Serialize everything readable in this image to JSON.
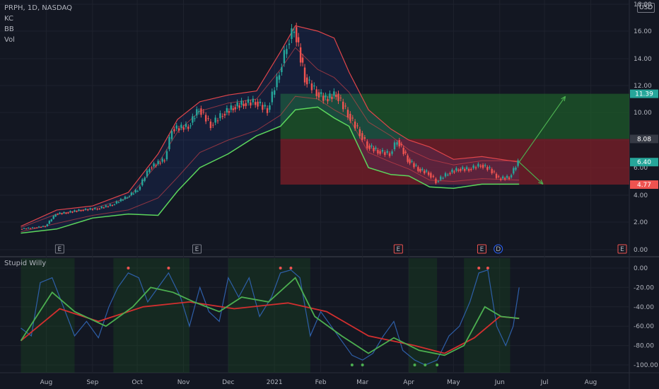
{
  "header": {
    "symbol_line": "PRPH, 1D, NASDAQ",
    "indicators": [
      "KC",
      "BB",
      "Vol"
    ],
    "currency": "USD",
    "oscillator_title": "Stupid Willy"
  },
  "colors": {
    "background": "#131722",
    "up": "#26a69a",
    "down": "#ef5350",
    "bb_band": "#5cd65c",
    "kc_band": "#e0454a",
    "osc_line": "#2e5fa8",
    "osc_fast": "#4caf50",
    "osc_slow": "#d32f2f",
    "target_zone": "#1e5a2a",
    "stop_zone": "#7d1f28"
  },
  "chart_data": [
    {
      "type": "line",
      "title": "PRPH, 1D, NASDAQ",
      "x_ticks": [
        "Aug",
        "Sep",
        "Oct",
        "Nov",
        "Dec",
        "2021",
        "Feb",
        "Mar",
        "Apr",
        "May",
        "Jun",
        "Jul",
        "Aug"
      ],
      "y_ticks": [
        0,
        2,
        4,
        6,
        8,
        10,
        12,
        14,
        16,
        18
      ],
      "ylim": [
        0,
        18
      ],
      "y_scale": "log-like",
      "grid": true,
      "price_labels": [
        {
          "label": "11.39",
          "value": 11.39,
          "color": "#26a69a"
        },
        {
          "label": "8.08",
          "value": 8.08,
          "color": "#2a2e39"
        },
        {
          "label": "6.40",
          "value": 6.4,
          "color": "#26a69a"
        },
        {
          "label": "4.77",
          "value": 4.77,
          "color": "#ef5350"
        }
      ],
      "earnings_markers": [
        "E",
        "E",
        "E",
        "E",
        "D",
        "E"
      ],
      "series": [
        {
          "name": "",
          "role": "price",
          "points": [
            [
              "2020-07-15",
              1.5
            ],
            [
              "2020-07-25",
              1.6
            ],
            [
              "2020-08-01",
              1.7
            ],
            [
              "2020-08-08",
              2.6
            ],
            [
              "2020-08-15",
              2.7
            ],
            [
              "2020-08-25",
              2.9
            ],
            [
              "2020-09-05",
              3.0
            ],
            [
              "2020-09-15",
              3.3
            ],
            [
              "2020-09-25",
              3.9
            ],
            [
              "2020-10-02",
              4.4
            ],
            [
              "2020-10-10",
              6.0
            ],
            [
              "2020-10-20",
              6.6
            ],
            [
              "2020-10-25",
              8.8
            ],
            [
              "2020-11-05",
              9.0
            ],
            [
              "2020-11-12",
              10.3
            ],
            [
              "2020-11-20",
              9.1
            ],
            [
              "2020-11-28",
              9.9
            ],
            [
              "2020-12-05",
              10.4
            ],
            [
              "2020-12-12",
              10.7
            ],
            [
              "2020-12-20",
              10.8
            ],
            [
              "2020-12-28",
              10.2
            ],
            [
              "2021-01-05",
              13.0
            ],
            [
              "2021-01-10",
              15.0
            ],
            [
              "2021-01-15",
              16.3
            ],
            [
              "2021-01-22",
              12.6
            ],
            [
              "2021-01-30",
              11.5
            ],
            [
              "2021-02-05",
              11.0
            ],
            [
              "2021-02-12",
              11.4
            ],
            [
              "2021-02-20",
              9.9
            ],
            [
              "2021-02-28",
              8.5
            ],
            [
              "2021-03-05",
              7.6
            ],
            [
              "2021-03-12",
              7.2
            ],
            [
              "2021-03-20",
              7.0
            ],
            [
              "2021-03-25",
              8.0
            ],
            [
              "2021-04-01",
              6.6
            ],
            [
              "2021-04-08",
              5.9
            ],
            [
              "2021-04-15",
              5.6
            ],
            [
              "2021-04-20",
              5.0
            ],
            [
              "2021-04-28",
              5.6
            ],
            [
              "2021-05-05",
              5.9
            ],
            [
              "2021-05-12",
              5.9
            ],
            [
              "2021-05-20",
              6.2
            ],
            [
              "2021-05-26",
              5.9
            ],
            [
              "2021-06-01",
              5.2
            ],
            [
              "2021-06-08",
              5.3
            ],
            [
              "2021-06-14",
              6.4
            ]
          ]
        },
        {
          "name": "",
          "role": "bb_upper",
          "points": [
            [
              "2020-07-15",
              1.7
            ],
            [
              "2020-08-08",
              2.9
            ],
            [
              "2020-09-01",
              3.2
            ],
            [
              "2020-09-25",
              4.2
            ],
            [
              "2020-10-15",
              7.0
            ],
            [
              "2020-10-28",
              9.5
            ],
            [
              "2020-11-12",
              10.8
            ],
            [
              "2020-12-01",
              11.3
            ],
            [
              "2020-12-20",
              11.6
            ],
            [
              "2021-01-05",
              14.5
            ],
            [
              "2021-01-15",
              16.4
            ],
            [
              "2021-01-30",
              16.0
            ],
            [
              "2021-02-10",
              15.5
            ],
            [
              "2021-02-20",
              13.0
            ],
            [
              "2021-03-05",
              10.2
            ],
            [
              "2021-03-20",
              8.8
            ],
            [
              "2021-04-01",
              8.0
            ],
            [
              "2021-04-15",
              7.5
            ],
            [
              "2021-05-01",
              6.6
            ],
            [
              "2021-05-20",
              6.8
            ],
            [
              "2021-06-14",
              6.4
            ]
          ]
        },
        {
          "name": "",
          "role": "bb_lower",
          "points": [
            [
              "2020-07-15",
              1.2
            ],
            [
              "2020-08-08",
              1.5
            ],
            [
              "2020-09-01",
              2.3
            ],
            [
              "2020-09-25",
              2.6
            ],
            [
              "2020-10-15",
              2.5
            ],
            [
              "2020-10-28",
              4.3
            ],
            [
              "2020-11-12",
              6.0
            ],
            [
              "2020-12-01",
              7.0
            ],
            [
              "2020-12-20",
              8.3
            ],
            [
              "2021-01-05",
              9.0
            ],
            [
              "2021-01-15",
              10.2
            ],
            [
              "2021-01-30",
              10.4
            ],
            [
              "2021-02-10",
              9.6
            ],
            [
              "2021-02-20",
              9.0
            ],
            [
              "2021-03-05",
              6.0
            ],
            [
              "2021-03-20",
              5.5
            ],
            [
              "2021-04-01",
              5.4
            ],
            [
              "2021-04-15",
              4.6
            ],
            [
              "2021-05-01",
              4.5
            ],
            [
              "2021-05-20",
              4.8
            ],
            [
              "2021-06-14",
              4.8
            ]
          ]
        },
        {
          "name": "",
          "role": "kc_upper",
          "points": [
            [
              "2020-07-15",
              1.6
            ],
            [
              "2020-08-08",
              2.6
            ],
            [
              "2020-09-01",
              3.0
            ],
            [
              "2020-09-25",
              3.8
            ],
            [
              "2020-10-15",
              6.3
            ],
            [
              "2020-10-28",
              8.6
            ],
            [
              "2020-11-12",
              10.1
            ],
            [
              "2020-12-01",
              10.7
            ],
            [
              "2020-12-20",
              11.0
            ],
            [
              "2021-01-05",
              13.2
            ],
            [
              "2021-01-15",
              14.8
            ],
            [
              "2021-01-30",
              13.2
            ],
            [
              "2021-02-10",
              12.6
            ],
            [
              "2021-02-20",
              11.5
            ],
            [
              "2021-03-05",
              9.3
            ],
            [
              "2021-03-20",
              8.3
            ],
            [
              "2021-04-01",
              7.3
            ],
            [
              "2021-04-15",
              6.6
            ],
            [
              "2021-05-01",
              6.2
            ],
            [
              "2021-05-20",
              6.5
            ],
            [
              "2021-06-14",
              6.5
            ]
          ]
        },
        {
          "name": "",
          "role": "kc_lower",
          "points": [
            [
              "2020-07-15",
              1.3
            ],
            [
              "2020-08-08",
              1.9
            ],
            [
              "2020-09-01",
              2.5
            ],
            [
              "2020-09-25",
              2.9
            ],
            [
              "2020-10-15",
              3.8
            ],
            [
              "2020-10-28",
              5.3
            ],
            [
              "2020-11-12",
              7.1
            ],
            [
              "2020-12-01",
              8.0
            ],
            [
              "2020-12-20",
              8.7
            ],
            [
              "2021-01-05",
              9.8
            ],
            [
              "2021-01-15",
              11.2
            ],
            [
              "2021-01-30",
              11.0
            ],
            [
              "2021-02-10",
              10.2
            ],
            [
              "2021-02-20",
              9.6
            ],
            [
              "2021-03-05",
              7.1
            ],
            [
              "2021-03-20",
              6.4
            ],
            [
              "2021-04-01",
              5.9
            ],
            [
              "2021-04-15",
              5.1
            ],
            [
              "2021-05-01",
              5.0
            ],
            [
              "2021-05-20",
              5.2
            ],
            [
              "2021-06-14",
              5.1
            ]
          ]
        }
      ],
      "zones": [
        {
          "label": "target",
          "from_date": "2021-01-05",
          "to_date": "2021-08-31",
          "low": 8.08,
          "high": 11.39
        },
        {
          "label": "stop",
          "from_date": "2021-01-05",
          "to_date": "2021-08-31",
          "low": 4.77,
          "high": 8.08
        }
      ],
      "projections": [
        {
          "from": [
            "2021-06-14",
            6.4
          ],
          "to": [
            "2021-07-15",
            11.2
          ]
        },
        {
          "from": [
            "2021-06-14",
            6.4
          ],
          "to": [
            "2021-06-30",
            4.8
          ]
        }
      ]
    },
    {
      "type": "line",
      "title": "Stupid Willy",
      "y_ticks": [
        0,
        -20,
        -40,
        -60,
        -80,
        -100
      ],
      "ylim": [
        -106,
        6
      ],
      "grid": true,
      "series": [
        {
          "name": "",
          "role": "oscillator",
          "points": [
            [
              "2020-07-15",
              -62
            ],
            [
              "2020-07-22",
              -70
            ],
            [
              "2020-07-28",
              -15
            ],
            [
              "2020-08-05",
              -10
            ],
            [
              "2020-08-10",
              -30
            ],
            [
              "2020-08-20",
              -70
            ],
            [
              "2020-08-28",
              -55
            ],
            [
              "2020-09-05",
              -72
            ],
            [
              "2020-09-12",
              -40
            ],
            [
              "2020-09-18",
              -20
            ],
            [
              "2020-09-25",
              -5
            ],
            [
              "2020-10-02",
              -10
            ],
            [
              "2020-10-08",
              -35
            ],
            [
              "2020-10-15",
              -20
            ],
            [
              "2020-10-22",
              -5
            ],
            [
              "2020-10-30",
              -30
            ],
            [
              "2020-11-05",
              -60
            ],
            [
              "2020-11-12",
              -20
            ],
            [
              "2020-11-18",
              -45
            ],
            [
              "2020-11-25",
              -55
            ],
            [
              "2020-12-01",
              -10
            ],
            [
              "2020-12-08",
              -30
            ],
            [
              "2020-12-15",
              -10
            ],
            [
              "2020-12-22",
              -50
            ],
            [
              "2020-12-30",
              -30
            ],
            [
              "2021-01-05",
              -5
            ],
            [
              "2021-01-12",
              -2
            ],
            [
              "2021-01-18",
              -10
            ],
            [
              "2021-01-25",
              -70
            ],
            [
              "2021-02-01",
              -45
            ],
            [
              "2021-02-08",
              -60
            ],
            [
              "2021-02-15",
              -75
            ],
            [
              "2021-02-22",
              -90
            ],
            [
              "2021-03-01",
              -95
            ],
            [
              "2021-03-08",
              -88
            ],
            [
              "2021-03-15",
              -70
            ],
            [
              "2021-03-22",
              -55
            ],
            [
              "2021-03-28",
              -85
            ],
            [
              "2021-04-05",
              -95
            ],
            [
              "2021-04-12",
              -100
            ],
            [
              "2021-04-20",
              -95
            ],
            [
              "2021-04-28",
              -70
            ],
            [
              "2021-05-05",
              -60
            ],
            [
              "2021-05-12",
              -35
            ],
            [
              "2021-05-18",
              -5
            ],
            [
              "2021-05-24",
              -2
            ],
            [
              "2021-05-30",
              -60
            ],
            [
              "2021-06-05",
              -80
            ],
            [
              "2021-06-10",
              -60
            ],
            [
              "2021-06-14",
              -20
            ]
          ]
        },
        {
          "name": "",
          "role": "fast_avg",
          "points": [
            [
              "2020-07-15",
              -75
            ],
            [
              "2020-08-05",
              -25
            ],
            [
              "2020-08-20",
              -45
            ],
            [
              "2020-09-10",
              -60
            ],
            [
              "2020-09-28",
              -40
            ],
            [
              "2020-10-10",
              -20
            ],
            [
              "2020-10-25",
              -25
            ],
            [
              "2020-11-08",
              -35
            ],
            [
              "2020-11-25",
              -45
            ],
            [
              "2020-12-10",
              -30
            ],
            [
              "2020-12-28",
              -35
            ],
            [
              "2021-01-15",
              -10
            ],
            [
              "2021-01-28",
              -50
            ],
            [
              "2021-02-15",
              -70
            ],
            [
              "2021-03-05",
              -88
            ],
            [
              "2021-03-22",
              -72
            ],
            [
              "2021-04-08",
              -85
            ],
            [
              "2021-04-25",
              -90
            ],
            [
              "2021-05-08",
              -80
            ],
            [
              "2021-05-22",
              -40
            ],
            [
              "2021-06-02",
              -50
            ],
            [
              "2021-06-14",
              -52
            ]
          ]
        },
        {
          "name": "",
          "role": "slow_avg",
          "points": [
            [
              "2020-07-15",
              -75
            ],
            [
              "2020-08-10",
              -42
            ],
            [
              "2020-09-05",
              -55
            ],
            [
              "2020-10-05",
              -40
            ],
            [
              "2020-11-05",
              -35
            ],
            [
              "2020-12-05",
              -42
            ],
            [
              "2021-01-10",
              -36
            ],
            [
              "2021-02-05",
              -45
            ],
            [
              "2021-03-05",
              -70
            ],
            [
              "2021-04-05",
              -80
            ],
            [
              "2021-04-25",
              -88
            ],
            [
              "2021-05-15",
              -72
            ],
            [
              "2021-06-01",
              -50
            ],
            [
              "2021-06-14",
              -52
            ]
          ]
        }
      ]
    }
  ]
}
